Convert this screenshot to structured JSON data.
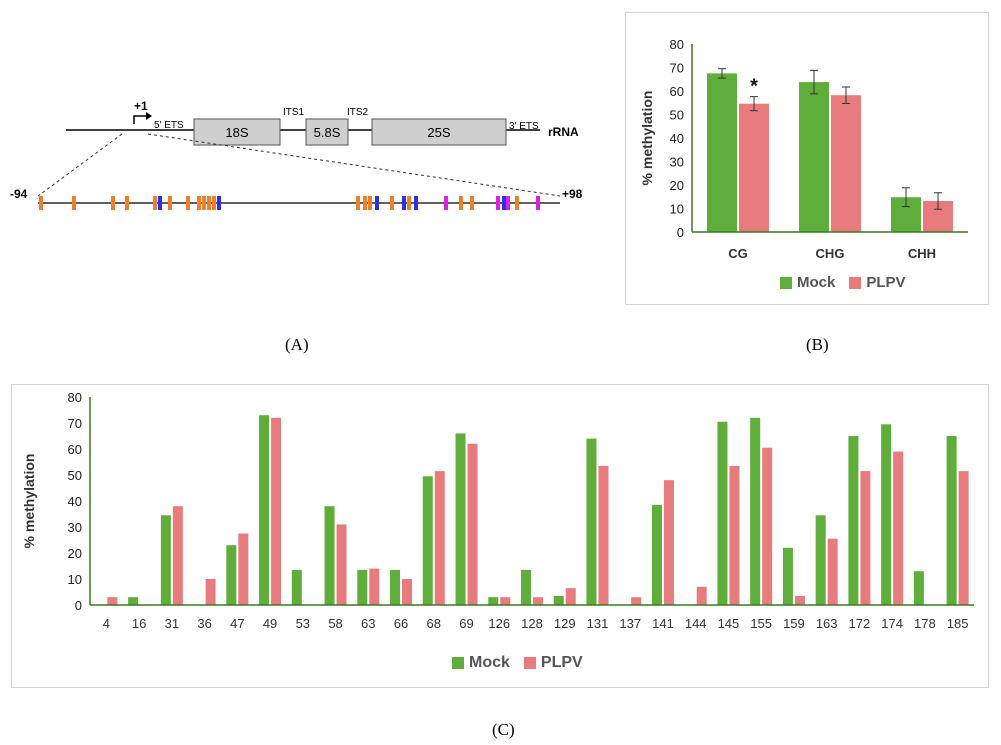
{
  "colors": {
    "mock": "#5fae3c",
    "plpv": "#e77b7e",
    "orange": "#f07f2a",
    "blue": "#2e2ee6",
    "magenta": "#e020e0"
  },
  "diagram": {
    "tss_label": "+1",
    "ets5": "5' ETS",
    "its1": "ITS1",
    "its2": "ITS2",
    "ets3": "3' ETS",
    "s18": "18S",
    "s58": "5.8S",
    "s25": "25S",
    "rrna": "rRNA",
    "left_coord": "-94",
    "right_coord": "+98",
    "site_colors": [
      "orange",
      "orange",
      "orange",
      "orange",
      "orange",
      "blue",
      "orange",
      "orange",
      "orange",
      "orange",
      "orange",
      "orange",
      "blue",
      "orange",
      "orange",
      "orange",
      "blue",
      "orange",
      "blue",
      "orange",
      "blue",
      "magenta",
      "orange",
      "orange",
      "magenta",
      "blue",
      "magenta",
      "orange",
      "magenta"
    ]
  },
  "labels": {
    "panel_a": "(A)",
    "panel_b": "(B)",
    "panel_c": "(C)"
  },
  "chart_data": [
    {
      "type": "bar",
      "categories": [
        "CG",
        "CHG",
        "CHH"
      ],
      "series": [
        {
          "name": "Mock",
          "values": [
            67.5,
            63.8,
            14.8
          ],
          "errors": [
            2,
            5,
            4
          ]
        },
        {
          "name": "PLPV",
          "values": [
            54.6,
            58.2,
            13.2
          ],
          "errors": [
            3,
            3.5,
            3.5
          ]
        }
      ],
      "ylabel": "% methylation",
      "ylim": [
        0,
        80
      ],
      "yticks": [
        0,
        10,
        20,
        30,
        40,
        50,
        60,
        70,
        80
      ],
      "annotation": {
        "text": "*",
        "category": "CG",
        "series": "PLPV"
      },
      "legend": "bottom"
    },
    {
      "type": "bar",
      "categories": [
        "4",
        "16",
        "31",
        "36",
        "47",
        "49",
        "53",
        "58",
        "63",
        "66",
        "68",
        "69",
        "126",
        "128",
        "129",
        "131",
        "137",
        "141",
        "144",
        "145",
        "155",
        "159",
        "163",
        "172",
        "174",
        "178",
        "185"
      ],
      "series": [
        {
          "name": "Mock",
          "values": [
            0,
            3,
            34.5,
            0,
            23,
            73,
            13.5,
            38,
            13.5,
            13.5,
            49.5,
            66,
            3,
            13.5,
            3.5,
            64,
            0,
            38.5,
            0,
            70.5,
            72,
            22,
            34.5,
            65,
            69.5,
            13,
            65
          ]
        },
        {
          "name": "PLPV",
          "values": [
            3,
            0,
            38,
            10,
            27.5,
            72,
            0,
            31,
            14,
            10,
            51.5,
            62,
            3,
            3,
            6.5,
            53.5,
            3,
            48,
            7,
            53.5,
            60.5,
            3.5,
            25.5,
            51.5,
            59,
            0,
            51.5
          ]
        }
      ],
      "ylabel": "% methylation",
      "ylim": [
        0,
        80
      ],
      "yticks": [
        0,
        10,
        20,
        30,
        40,
        50,
        60,
        70,
        80
      ],
      "legend": "bottom"
    }
  ]
}
